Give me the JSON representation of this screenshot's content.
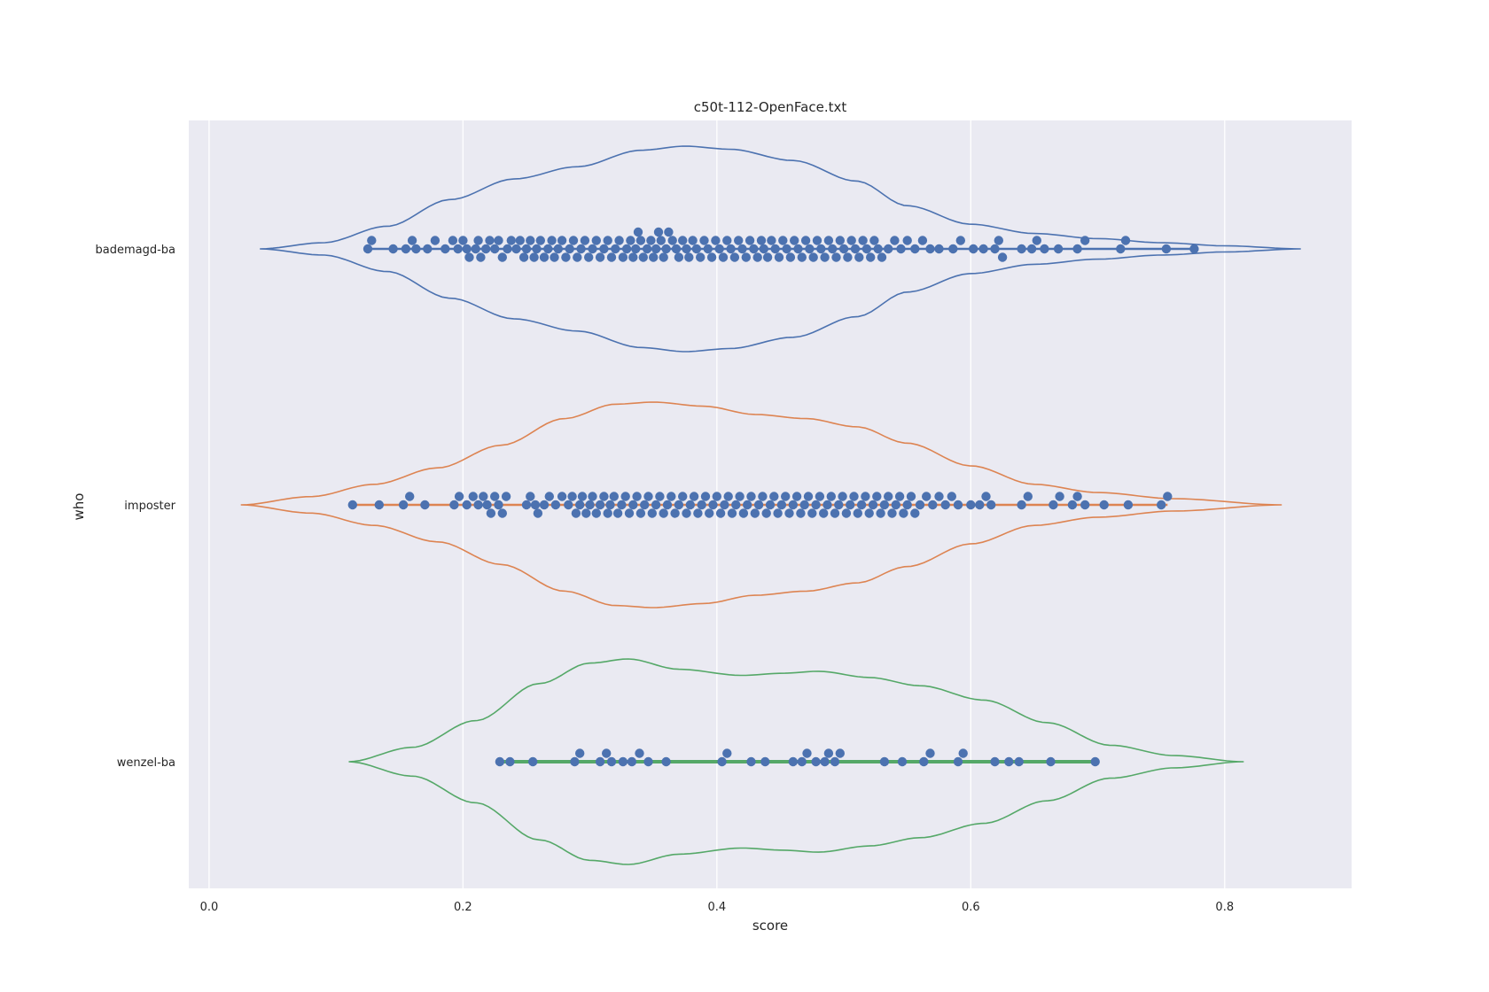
{
  "chart_data": {
    "type": "violin",
    "title": "c50t-112-OpenFace.txt",
    "xlabel": "score",
    "ylabel": "who",
    "xlim": [
      -0.016,
      0.9
    ],
    "x_ticks": [
      "0.0",
      "0.2",
      "0.4",
      "0.6",
      "0.8"
    ],
    "x_tick_values": [
      0.0,
      0.2,
      0.4,
      0.6,
      0.8
    ],
    "grid": true,
    "background": "#EAEAF2",
    "point_color": "#4C72B0",
    "categories": [
      "bademagd-ba",
      "imposter",
      "wenzel-ba"
    ],
    "series": [
      {
        "name": "bademagd-ba",
        "color": "#4C72B0",
        "violin": {
          "x": [
            0.04,
            0.09,
            0.14,
            0.19,
            0.24,
            0.29,
            0.34,
            0.375,
            0.41,
            0.46,
            0.51,
            0.55,
            0.6,
            0.65,
            0.7,
            0.75,
            0.8,
            0.86
          ],
          "density": [
            0.0,
            0.06,
            0.22,
            0.48,
            0.68,
            0.8,
            0.96,
            1.0,
            0.97,
            0.86,
            0.66,
            0.42,
            0.24,
            0.15,
            0.1,
            0.06,
            0.03,
            0.0
          ]
        },
        "points": [
          0.125,
          0.128,
          0.145,
          0.155,
          0.16,
          0.163,
          0.172,
          0.178,
          0.186,
          0.192,
          0.196,
          0.2,
          0.203,
          0.205,
          0.21,
          0.212,
          0.214,
          0.218,
          0.221,
          0.225,
          0.228,
          0.231,
          0.235,
          0.238,
          0.242,
          0.245,
          0.248,
          0.25,
          0.253,
          0.256,
          0.258,
          0.261,
          0.264,
          0.267,
          0.27,
          0.272,
          0.275,
          0.278,
          0.281,
          0.284,
          0.287,
          0.29,
          0.293,
          0.296,
          0.299,
          0.302,
          0.305,
          0.308,
          0.311,
          0.314,
          0.317,
          0.32,
          0.323,
          0.326,
          0.329,
          0.332,
          0.334,
          0.336,
          0.338,
          0.34,
          0.342,
          0.345,
          0.348,
          0.35,
          0.352,
          0.354,
          0.356,
          0.358,
          0.36,
          0.362,
          0.365,
          0.368,
          0.37,
          0.373,
          0.376,
          0.378,
          0.381,
          0.384,
          0.387,
          0.39,
          0.393,
          0.396,
          0.399,
          0.402,
          0.405,
          0.408,
          0.411,
          0.414,
          0.417,
          0.42,
          0.423,
          0.426,
          0.429,
          0.432,
          0.435,
          0.437,
          0.44,
          0.443,
          0.446,
          0.449,
          0.452,
          0.455,
          0.458,
          0.461,
          0.464,
          0.467,
          0.47,
          0.473,
          0.476,
          0.479,
          0.482,
          0.485,
          0.488,
          0.491,
          0.494,
          0.497,
          0.5,
          0.503,
          0.506,
          0.509,
          0.512,
          0.515,
          0.518,
          0.521,
          0.524,
          0.527,
          0.53,
          0.535,
          0.54,
          0.545,
          0.55,
          0.556,
          0.562,
          0.568,
          0.575,
          0.586,
          0.592,
          0.602,
          0.61,
          0.619,
          0.622,
          0.625,
          0.64,
          0.648,
          0.652,
          0.658,
          0.669,
          0.684,
          0.69,
          0.718,
          0.722,
          0.754,
          0.776
        ]
      },
      {
        "name": "imposter",
        "color": "#DD8452",
        "violin": {
          "x": [
            0.025,
            0.08,
            0.13,
            0.18,
            0.23,
            0.28,
            0.32,
            0.35,
            0.39,
            0.43,
            0.47,
            0.51,
            0.55,
            0.6,
            0.65,
            0.7,
            0.76,
            0.845
          ],
          "density": [
            0.0,
            0.08,
            0.2,
            0.36,
            0.58,
            0.84,
            0.98,
            1.0,
            0.96,
            0.88,
            0.84,
            0.76,
            0.6,
            0.38,
            0.2,
            0.12,
            0.06,
            0.0
          ]
        },
        "points": [
          0.113,
          0.134,
          0.153,
          0.158,
          0.17,
          0.193,
          0.197,
          0.203,
          0.208,
          0.212,
          0.216,
          0.219,
          0.222,
          0.225,
          0.228,
          0.231,
          0.234,
          0.25,
          0.253,
          0.257,
          0.259,
          0.264,
          0.268,
          0.273,
          0.278,
          0.283,
          0.286,
          0.289,
          0.292,
          0.294,
          0.297,
          0.3,
          0.302,
          0.305,
          0.308,
          0.311,
          0.314,
          0.316,
          0.319,
          0.322,
          0.325,
          0.328,
          0.331,
          0.334,
          0.337,
          0.34,
          0.343,
          0.346,
          0.349,
          0.352,
          0.355,
          0.358,
          0.361,
          0.364,
          0.367,
          0.37,
          0.373,
          0.376,
          0.379,
          0.382,
          0.385,
          0.388,
          0.391,
          0.394,
          0.397,
          0.4,
          0.403,
          0.406,
          0.409,
          0.412,
          0.415,
          0.418,
          0.421,
          0.424,
          0.427,
          0.43,
          0.433,
          0.436,
          0.439,
          0.442,
          0.445,
          0.448,
          0.451,
          0.454,
          0.457,
          0.46,
          0.463,
          0.466,
          0.469,
          0.472,
          0.475,
          0.478,
          0.481,
          0.484,
          0.487,
          0.49,
          0.493,
          0.496,
          0.499,
          0.502,
          0.505,
          0.508,
          0.511,
          0.514,
          0.517,
          0.52,
          0.523,
          0.526,
          0.529,
          0.532,
          0.535,
          0.538,
          0.541,
          0.544,
          0.547,
          0.55,
          0.553,
          0.556,
          0.56,
          0.565,
          0.57,
          0.575,
          0.58,
          0.585,
          0.59,
          0.6,
          0.607,
          0.612,
          0.616,
          0.64,
          0.645,
          0.665,
          0.67,
          0.68,
          0.684,
          0.69,
          0.705,
          0.724,
          0.75,
          0.755
        ]
      },
      {
        "name": "wenzel-ba",
        "color": "#55A868",
        "violin": {
          "x": [
            0.11,
            0.16,
            0.21,
            0.26,
            0.3,
            0.33,
            0.37,
            0.42,
            0.45,
            0.48,
            0.52,
            0.56,
            0.61,
            0.66,
            0.71,
            0.76,
            0.815
          ],
          "density": [
            0.0,
            0.14,
            0.4,
            0.76,
            0.96,
            1.0,
            0.9,
            0.84,
            0.86,
            0.88,
            0.82,
            0.74,
            0.6,
            0.38,
            0.16,
            0.06,
            0.0
          ]
        },
        "points": [
          0.229,
          0.237,
          0.255,
          0.288,
          0.292,
          0.308,
          0.313,
          0.317,
          0.326,
          0.333,
          0.339,
          0.346,
          0.36,
          0.404,
          0.408,
          0.427,
          0.438,
          0.46,
          0.467,
          0.471,
          0.478,
          0.485,
          0.488,
          0.493,
          0.497,
          0.532,
          0.546,
          0.563,
          0.568,
          0.59,
          0.594,
          0.619,
          0.63,
          0.638,
          0.663,
          0.698
        ]
      }
    ]
  }
}
